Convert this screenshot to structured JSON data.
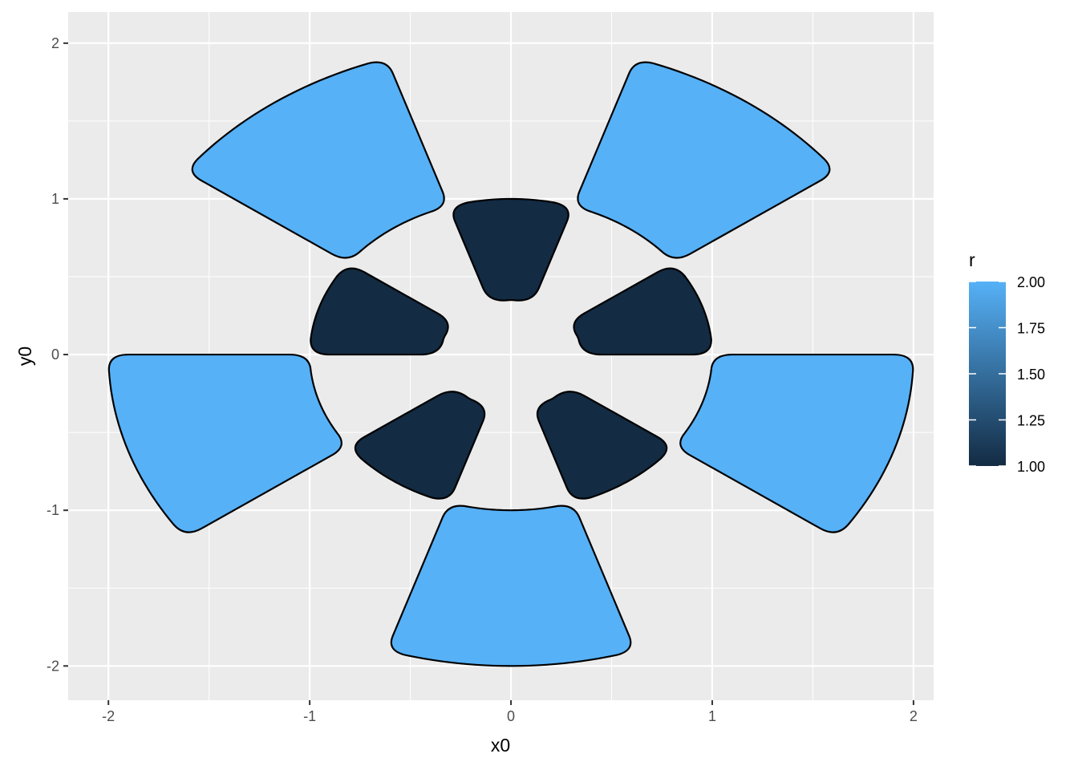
{
  "chart_data": {
    "type": "arc-bar",
    "title": "",
    "xlabel": "x0",
    "ylabel": "y0",
    "xlim": [
      -2.2,
      2.1
    ],
    "ylim": [
      -2.22,
      2.2
    ],
    "x_ticks": [
      -2,
      -1,
      0,
      1,
      2
    ],
    "x_tick_labels": [
      "-2",
      "-1",
      "0",
      "1",
      "2"
    ],
    "y_ticks": [
      -2,
      -1,
      0,
      1,
      2
    ],
    "y_tick_labels": [
      "-2",
      "-1",
      "0",
      "1",
      "2"
    ],
    "grid": true,
    "center": [
      0,
      0
    ],
    "segments": [
      {
        "r0": 0.35,
        "r": 1,
        "start_deg": 0,
        "end_deg": 36
      },
      {
        "r0": 0.35,
        "r": 1,
        "start_deg": 72,
        "end_deg": 108
      },
      {
        "r0": 0.35,
        "r": 1,
        "start_deg": 144,
        "end_deg": 180
      },
      {
        "r0": 0.35,
        "r": 1,
        "start_deg": 216,
        "end_deg": 252
      },
      {
        "r0": 0.35,
        "r": 1,
        "start_deg": 288,
        "end_deg": 324
      },
      {
        "r0": 1,
        "r": 2,
        "start_deg": 36,
        "end_deg": 72
      },
      {
        "r0": 1,
        "r": 2,
        "start_deg": 108,
        "end_deg": 144
      },
      {
        "r0": 1,
        "r": 2,
        "start_deg": 180,
        "end_deg": 216
      },
      {
        "r0": 1,
        "r": 2,
        "start_deg": 252,
        "end_deg": 288
      },
      {
        "r0": 1,
        "r": 2,
        "start_deg": 324,
        "end_deg": 360
      }
    ],
    "corner_radius": 0.1,
    "fill_variable": "r",
    "legend": {
      "title": "r",
      "position": "right",
      "min": 1.0,
      "max": 2.0,
      "labels": [
        "2.00",
        "1.75",
        "1.50",
        "1.25",
        "1.00"
      ],
      "values": [
        2.0,
        1.75,
        1.5,
        1.25,
        1.0
      ],
      "low_color": "#132B43",
      "high_color": "#56B1F7"
    },
    "colors": {
      "panel_background": "#EBEBEB",
      "grid_major": "#FFFFFF",
      "outline": "#000000"
    }
  }
}
